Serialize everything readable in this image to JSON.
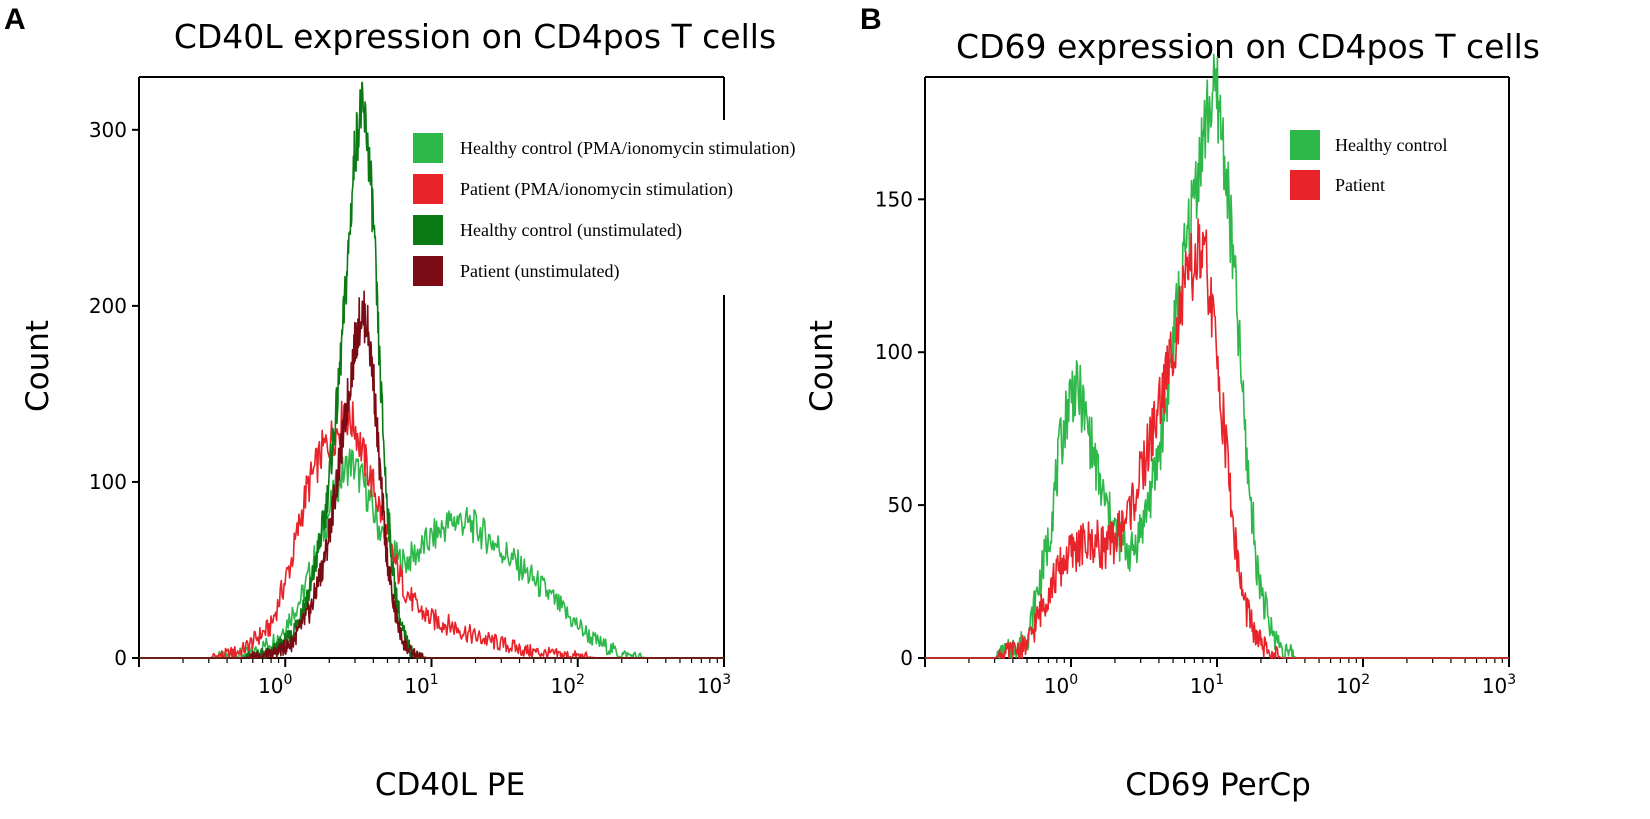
{
  "chart_data": [
    {
      "panel_label": "A",
      "type": "line",
      "title": "CD40L expression on CD4pos T cells",
      "xlabel": "CD40L PE",
      "ylabel": "Count",
      "xscale": "log",
      "xlim": [
        0.1,
        1000
      ],
      "ylim": [
        0,
        330
      ],
      "yticks": [
        0,
        100,
        200,
        300
      ],
      "xticks": [
        {
          "base": "10",
          "exp": "0"
        },
        {
          "base": "10",
          "exp": "1"
        },
        {
          "base": "10",
          "exp": "2"
        },
        {
          "base": "10",
          "exp": "3"
        }
      ],
      "legend_position": "top-right",
      "series": [
        {
          "name": "Healthy control (PMA/ionomycin stimulation)",
          "color": "#2eb84a",
          "x": [
            0.3,
            0.6,
            0.9,
            1.3,
            1.8,
            2.3,
            2.8,
            3.4,
            4.2,
            5.2,
            6.5,
            8,
            10,
            12,
            14,
            16,
            20,
            28,
            40,
            60,
            90,
            130,
            200,
            300
          ],
          "y": [
            0,
            3,
            12,
            35,
            70,
            100,
            112,
            100,
            78,
            60,
            54,
            60,
            68,
            74,
            78,
            78,
            74,
            64,
            52,
            38,
            22,
            10,
            2,
            0
          ]
        },
        {
          "name": "Patient (PMA/ionomycin stimulation)",
          "color": "#e8232a",
          "x": [
            0.3,
            0.5,
            0.8,
            1.1,
            1.4,
            1.8,
            2.2,
            2.6,
            3.0,
            3.5,
            4.2,
            5.2,
            6.5,
            8,
            10,
            14,
            20,
            30,
            45,
            70,
            100,
            140
          ],
          "y": [
            0,
            4,
            18,
            55,
            95,
            118,
            128,
            138,
            132,
            112,
            92,
            62,
            40,
            28,
            22,
            18,
            12,
            8,
            4,
            2,
            1,
            0
          ]
        },
        {
          "name": "Healthy control (unstimulated)",
          "color": "#0b7a14",
          "x": [
            0.5,
            0.8,
            1.1,
            1.5,
            1.9,
            2.3,
            2.7,
            3.0,
            3.3,
            3.6,
            4.0,
            4.4,
            4.9,
            5.5,
            6.2,
            7,
            8,
            9.5
          ],
          "y": [
            0,
            3,
            12,
            40,
            85,
            150,
            230,
            290,
            312,
            300,
            250,
            170,
            95,
            45,
            18,
            6,
            1,
            0
          ]
        },
        {
          "name": "Patient (unstimulated)",
          "color": "#7a0b14",
          "x": [
            0.5,
            0.8,
            1.1,
            1.5,
            1.9,
            2.3,
            2.7,
            3.0,
            3.3,
            3.6,
            4.0,
            4.4,
            4.9,
            5.5,
            6.2,
            7,
            8,
            9.5
          ],
          "y": [
            0,
            2,
            8,
            28,
            60,
            105,
            150,
            178,
            196,
            192,
            160,
            110,
            62,
            30,
            12,
            4,
            1,
            0
          ]
        }
      ]
    },
    {
      "panel_label": "B",
      "type": "line",
      "title": "CD69 expression on CD4pos T cells",
      "xlabel": "CD69 PerCp",
      "ylabel": "Count",
      "xscale": "log",
      "xlim": [
        0.1,
        1000
      ],
      "ylim": [
        0,
        190
      ],
      "yticks": [
        0,
        50,
        100,
        150
      ],
      "xticks": [
        {
          "base": "10",
          "exp": "0"
        },
        {
          "base": "10",
          "exp": "1"
        },
        {
          "base": "10",
          "exp": "2"
        },
        {
          "base": "10",
          "exp": "3"
        }
      ],
      "legend_position": "top-right",
      "series": [
        {
          "name": "Healthy control",
          "color": "#2eb84a",
          "x": [
            0.3,
            0.5,
            0.7,
            0.85,
            1.0,
            1.15,
            1.35,
            1.6,
            1.9,
            2.2,
            2.6,
            3.1,
            3.7,
            4.4,
            5.2,
            6.2,
            7.4,
            8.8,
            10,
            11.5,
            13.5,
            16,
            19,
            23,
            28,
            35
          ],
          "y": [
            0,
            6,
            38,
            70,
            88,
            86,
            72,
            55,
            44,
            38,
            34,
            44,
            58,
            80,
            110,
            135,
            160,
            180,
            185,
            160,
            118,
            65,
            28,
            10,
            3,
            0
          ]
        },
        {
          "name": "Patient",
          "color": "#e8232a",
          "x": [
            0.3,
            0.5,
            0.7,
            0.9,
            1.1,
            1.4,
            1.8,
            2.2,
            2.7,
            3.2,
            3.8,
            4.5,
            5.3,
            6.3,
            7.5,
            8.5,
            10,
            11.5,
            13,
            15,
            18,
            22,
            28
          ],
          "y": [
            0,
            4,
            22,
            32,
            36,
            38,
            36,
            42,
            52,
            64,
            78,
            92,
            108,
            124,
            132,
            128,
            98,
            70,
            42,
            20,
            8,
            2,
            0
          ]
        }
      ]
    }
  ]
}
